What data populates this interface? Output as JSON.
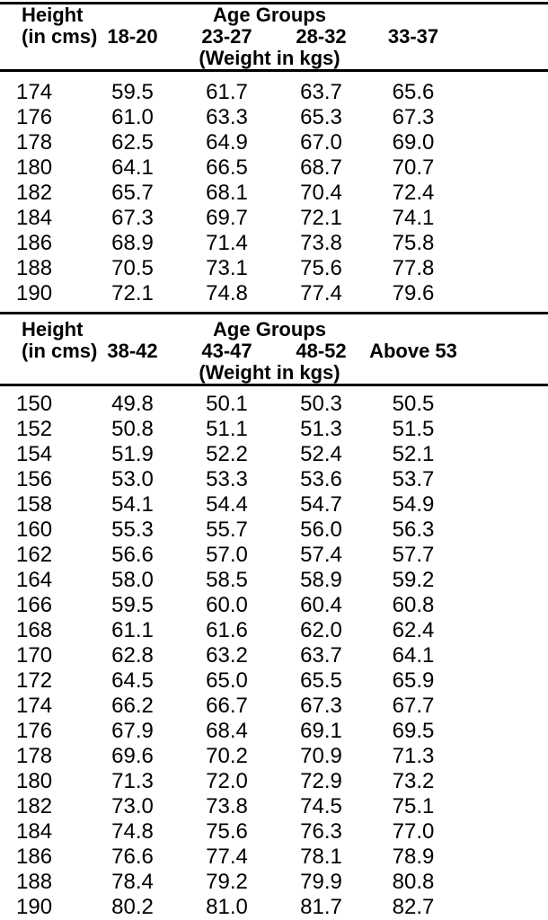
{
  "page": {
    "background": "#ffffff",
    "rule_color": "#000000",
    "text_color": "#000000"
  },
  "tables": [
    {
      "name": "weight-table-ages-18-37",
      "header": {
        "height_label_line1": "Height",
        "height_label_line2": "(in cms)",
        "group_title": "Age Groups",
        "age_columns": [
          "18-20",
          "23-27",
          "28-32",
          "33-37"
        ],
        "unit_note": "(Weight in kgs)"
      },
      "rows": [
        {
          "height": "174",
          "weights": [
            "59.5",
            "61.7",
            "63.7",
            "65.6"
          ]
        },
        {
          "height": "176",
          "weights": [
            "61.0",
            "63.3",
            "65.3",
            "67.3"
          ]
        },
        {
          "height": "178",
          "weights": [
            "62.5",
            "64.9",
            "67.0",
            "69.0"
          ]
        },
        {
          "height": "180",
          "weights": [
            "64.1",
            "66.5",
            "68.7",
            "70.7"
          ]
        },
        {
          "height": "182",
          "weights": [
            "65.7",
            "68.1",
            "70.4",
            "72.4"
          ]
        },
        {
          "height": "184",
          "weights": [
            "67.3",
            "69.7",
            "72.1",
            "74.1"
          ]
        },
        {
          "height": "186",
          "weights": [
            "68.9",
            "71.4",
            "73.8",
            "75.8"
          ]
        },
        {
          "height": "188",
          "weights": [
            "70.5",
            "73.1",
            "75.6",
            "77.8"
          ]
        },
        {
          "height": "190",
          "weights": [
            "72.1",
            "74.8",
            "77.4",
            "79.6"
          ]
        }
      ]
    },
    {
      "name": "weight-table-ages-38-above-53",
      "header": {
        "height_label_line1": "Height",
        "height_label_line2": "(in cms)",
        "group_title": "Age Groups",
        "age_columns": [
          "38-42",
          "43-47",
          "48-52",
          "Above 53"
        ],
        "unit_note": "(Weight in kgs)"
      },
      "rows": [
        {
          "height": "150",
          "weights": [
            "49.8",
            "50.1",
            "50.3",
            "50.5"
          ]
        },
        {
          "height": "152",
          "weights": [
            "50.8",
            "51.1",
            "51.3",
            "51.5"
          ]
        },
        {
          "height": "154",
          "weights": [
            "51.9",
            "52.2",
            "52.4",
            "52.1"
          ]
        },
        {
          "height": "156",
          "weights": [
            "53.0",
            "53.3",
            "53.6",
            "53.7"
          ]
        },
        {
          "height": "158",
          "weights": [
            "54.1",
            "54.4",
            "54.7",
            "54.9"
          ]
        },
        {
          "height": "160",
          "weights": [
            "55.3",
            "55.7",
            "56.0",
            "56.3"
          ]
        },
        {
          "height": "162",
          "weights": [
            "56.6",
            "57.0",
            "57.4",
            "57.7"
          ]
        },
        {
          "height": "164",
          "weights": [
            "58.0",
            "58.5",
            "58.9",
            "59.2"
          ]
        },
        {
          "height": "166",
          "weights": [
            "59.5",
            "60.0",
            "60.4",
            "60.8"
          ]
        },
        {
          "height": "168",
          "weights": [
            "61.1",
            "61.6",
            "62.0",
            "62.4"
          ]
        },
        {
          "height": "170",
          "weights": [
            "62.8",
            "63.2",
            "63.7",
            "64.1"
          ]
        },
        {
          "height": "172",
          "weights": [
            "64.5",
            "65.0",
            "65.5",
            "65.9"
          ]
        },
        {
          "height": "174",
          "weights": [
            "66.2",
            "66.7",
            "67.3",
            "67.7"
          ]
        },
        {
          "height": "176",
          "weights": [
            "67.9",
            "68.4",
            "69.1",
            "69.5"
          ]
        },
        {
          "height": "178",
          "weights": [
            "69.6",
            "70.2",
            "70.9",
            "71.3"
          ]
        },
        {
          "height": "180",
          "weights": [
            "71.3",
            "72.0",
            "72.9",
            "73.2"
          ]
        },
        {
          "height": "182",
          "weights": [
            "73.0",
            "73.8",
            "74.5",
            "75.1"
          ]
        },
        {
          "height": "184",
          "weights": [
            "74.8",
            "75.6",
            "76.3",
            "77.0"
          ]
        },
        {
          "height": "186",
          "weights": [
            "76.6",
            "77.4",
            "78.1",
            "78.9"
          ]
        },
        {
          "height": "188",
          "weights": [
            "78.4",
            "79.2",
            "79.9",
            "80.8"
          ]
        },
        {
          "height": "190",
          "weights": [
            "80.2",
            "81.0",
            "81.7",
            "82.7"
          ]
        }
      ]
    }
  ]
}
